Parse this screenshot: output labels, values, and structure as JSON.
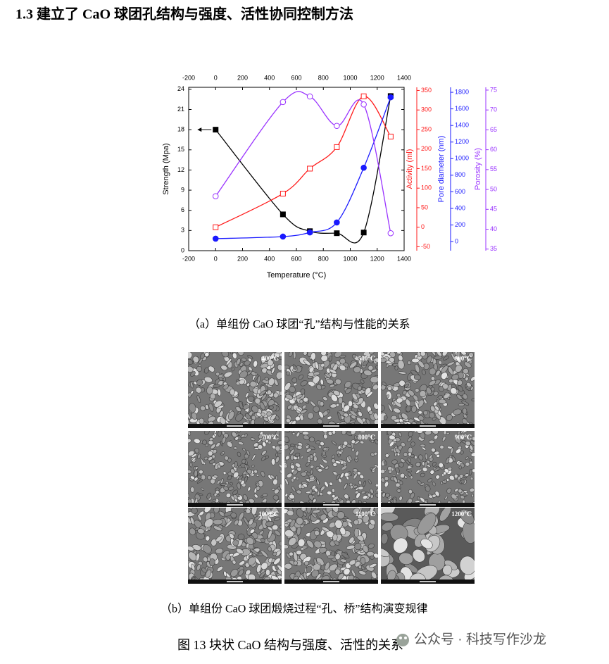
{
  "heading": "1.3 建立了 CaO 球团孔结构与强度、活性协同控制方法",
  "chart_data": {
    "type": "scatter",
    "xlabel": "Temperature (°C)",
    "xlim": [
      -200,
      1400
    ],
    "xticks": [
      -200,
      0,
      200,
      400,
      600,
      800,
      1000,
      1200,
      1400
    ],
    "ylabel": "Strength (Mpa)",
    "ylim": [
      0,
      24.3
    ],
    "yticks": [
      0,
      3,
      6,
      9,
      12,
      15,
      18,
      21,
      24
    ],
    "y2label": "Activity (ml)",
    "y2lim": [
      -60,
      358
    ],
    "y2ticks": [
      -50,
      0,
      50,
      100,
      150,
      200,
      250,
      300,
      350
    ],
    "y3label": "Pore diameter (nm)",
    "y3lim": [
      -110,
      1860
    ],
    "y3ticks": [
      0,
      200,
      400,
      600,
      800,
      1000,
      1200,
      1400,
      1600,
      1800
    ],
    "y4label": "Porosity (%)",
    "y4lim": [
      34.6,
      75.7
    ],
    "y4ticks": [
      35,
      40,
      45,
      50,
      55,
      60,
      65,
      70,
      75
    ],
    "axis_colors": {
      "y": "#000000",
      "y2": "#ff1a1a",
      "y3": "#1a1aff",
      "y4": "#9a33ff"
    },
    "x": [
      0,
      500,
      700,
      900,
      1100,
      1300
    ],
    "series": [
      {
        "axis": "y",
        "color": "#000000",
        "marker": "square",
        "filled": true,
        "values": [
          18,
          5.4,
          2.9,
          2.6,
          2.7,
          23
        ]
      },
      {
        "axis": "y2",
        "color": "#ff1a1a",
        "marker": "square",
        "filled": false,
        "values": [
          0,
          86,
          150,
          205,
          335,
          232
        ]
      },
      {
        "axis": "y3",
        "color": "#1a1aff",
        "marker": "circle",
        "filled": true,
        "values": [
          35,
          60,
          110,
          230,
          890,
          1740
        ]
      },
      {
        "axis": "y4",
        "color": "#9a33ff",
        "marker": "circle",
        "filled": false,
        "values": [
          48.3,
          72,
          73.4,
          66,
          71.4,
          39
        ]
      }
    ]
  },
  "captions": {
    "a": "（a）单组份 CaO 球团“孔”结构与性能的关系",
    "b": "（b）单组份 CaO 球团煅烧过程“孔、桥”结构演变规律",
    "figure": "图 13  块状 CaO 结构与强度、活性的关系"
  },
  "images": [
    {
      "label": "400℃"
    },
    {
      "label": "500℃"
    },
    {
      "label": "600℃"
    },
    {
      "label": "700℃"
    },
    {
      "label": "800℃"
    },
    {
      "label": "900℃"
    },
    {
      "label": "1000℃"
    },
    {
      "label": "1100℃"
    },
    {
      "label": "1200℃"
    }
  ],
  "footer": {
    "source": "公众号 · 科技写作沙龙"
  }
}
